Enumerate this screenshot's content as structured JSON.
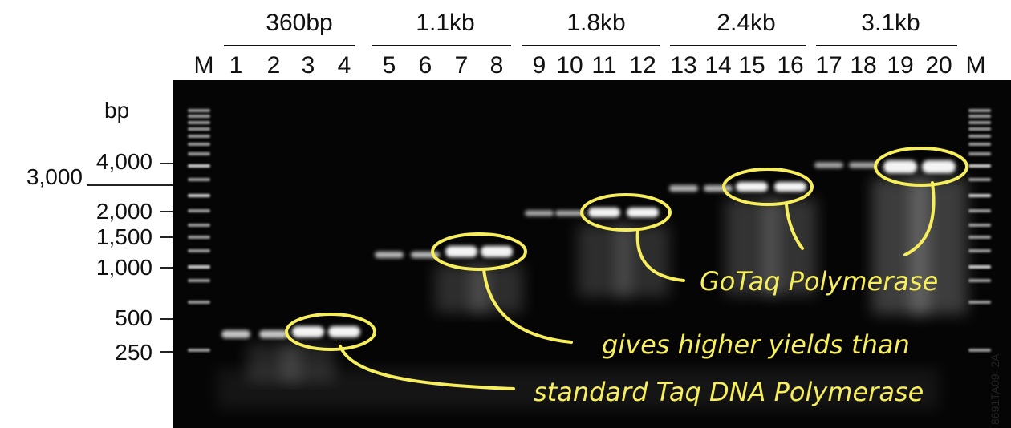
{
  "groups": [
    {
      "label": "360bp"
    },
    {
      "label": "1.1kb"
    },
    {
      "label": "1.8kb"
    },
    {
      "label": "2.4kb"
    },
    {
      "label": "3.1kb"
    }
  ],
  "lanes": [
    "M",
    "1",
    "2",
    "3",
    "4",
    "5",
    "6",
    "7",
    "8",
    "9",
    "10",
    "11",
    "12",
    "13",
    "14",
    "15",
    "16",
    "17",
    "18",
    "19",
    "20",
    "M"
  ],
  "size_axis": {
    "unit": "bp",
    "markers": [
      "4,000",
      "3,000",
      "2,000",
      "1,500",
      "1,000",
      "500",
      "250"
    ]
  },
  "annotation": {
    "lines": [
      "GoTaq Polymerase",
      "gives higher yields than",
      "standard Taq DNA Polymerase"
    ],
    "color": "#f7ee5d"
  },
  "gel": {
    "background": "#050505",
    "ladder_color": "#d9d9d9",
    "band_color": "#f4f4f4"
  },
  "figure_id": "8691TA09_2A"
}
